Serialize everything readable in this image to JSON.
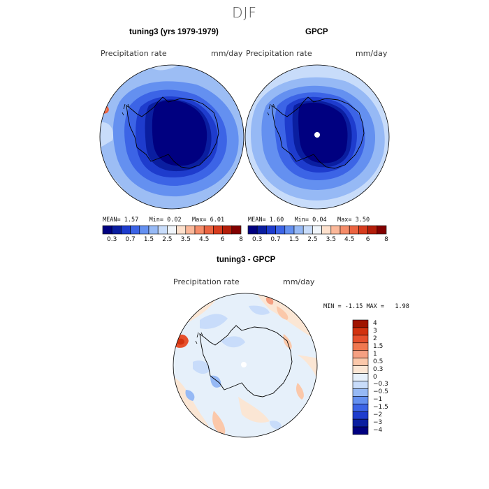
{
  "season_title": "DJF",
  "panels": {
    "model": {
      "title": "tuning3 (yrs 1979-1979)",
      "variable": "Precipitation rate",
      "units": "mm/day",
      "stats": {
        "mean_label": "MEAN=",
        "mean": "1.57",
        "min_label": "Min=",
        "min": "0.02",
        "max_label": "Max=",
        "max": "6.01"
      }
    },
    "obs": {
      "title": "GPCP",
      "variable": "Precipitation rate",
      "units": "mm/day",
      "stats": {
        "mean_label": "MEAN=",
        "mean": "1.60",
        "min_label": "Min=",
        "min": "0.04",
        "max_label": "Max=",
        "max": "3.50"
      }
    },
    "diff": {
      "title": "tuning3 - GPCP",
      "variable": "Precipitation rate",
      "units": "mm/day",
      "stats": {
        "min_label": "MIN =",
        "min": "-1.15",
        "max_label": "MAX =",
        "max": "1.98"
      }
    }
  },
  "colorbar_precip": {
    "colors": [
      "#000080",
      "#0a1ea0",
      "#1e3ccd",
      "#3c64e6",
      "#6490f0",
      "#96b9f5",
      "#c8dcfa",
      "#f0f5fa",
      "#fde0cc",
      "#fbb89a",
      "#f58c69",
      "#eb6441",
      "#d73c1e",
      "#b41e0a",
      "#820000"
    ],
    "tick_labels": [
      "0.3",
      "0.7",
      "1.5",
      "2.5",
      "3.5",
      "4.5",
      "6",
      "8"
    ]
  },
  "colorbar_diff": {
    "colors": [
      "#000080",
      "#0a1ea0",
      "#1e3ccd",
      "#3c64e6",
      "#6490f0",
      "#96b9f5",
      "#c8dcfa",
      "#e6f0fa",
      "#fbe6d4",
      "#fbc8aa",
      "#f5a082",
      "#f07850",
      "#e6502d",
      "#d2320f",
      "#a01400"
    ],
    "tick_labels": [
      "4",
      "3",
      "2",
      "1.5",
      "1",
      "0.5",
      "0.3",
      "0",
      "−0.3",
      "−0.5",
      "−1",
      "−1.5",
      "−2",
      "−3",
      "−4"
    ]
  }
}
